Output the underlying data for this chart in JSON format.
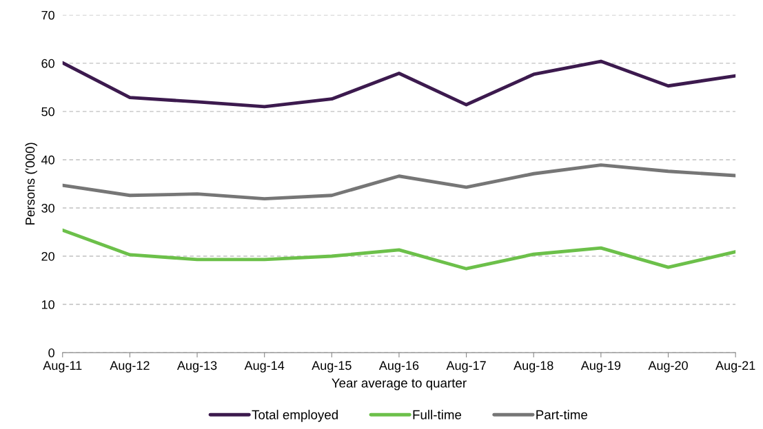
{
  "chart_data": {
    "type": "line",
    "xlabel": "Year average to quarter",
    "ylabel": "Persons ('000)",
    "categories": [
      "Aug-11",
      "Aug-12",
      "Aug-13",
      "Aug-14",
      "Aug-15",
      "Aug-16",
      "Aug-17",
      "Aug-18",
      "Aug-19",
      "Aug-20",
      "Aug-21"
    ],
    "series": [
      {
        "name": "Total employed",
        "color": "#3c1a4e",
        "values": [
          60.1,
          52.9,
          52.0,
          51.0,
          52.6,
          57.9,
          51.4,
          57.7,
          60.4,
          55.3,
          57.4
        ]
      },
      {
        "name": "Full-time",
        "color": "#6cc04a",
        "values": [
          25.4,
          20.3,
          19.3,
          19.3,
          20.0,
          21.3,
          17.4,
          20.4,
          21.7,
          17.7,
          20.9
        ]
      },
      {
        "name": "Part-time",
        "color": "#767676",
        "values": [
          34.7,
          32.6,
          32.9,
          31.9,
          32.6,
          36.6,
          34.3,
          37.1,
          38.9,
          37.6,
          36.7
        ]
      }
    ],
    "ylim": [
      0,
      70
    ],
    "yticks": [
      0,
      10,
      20,
      30,
      40,
      50,
      60,
      70
    ],
    "grid": "y",
    "legend": "bottom",
    "marker": "none",
    "line_style": "solid"
  }
}
